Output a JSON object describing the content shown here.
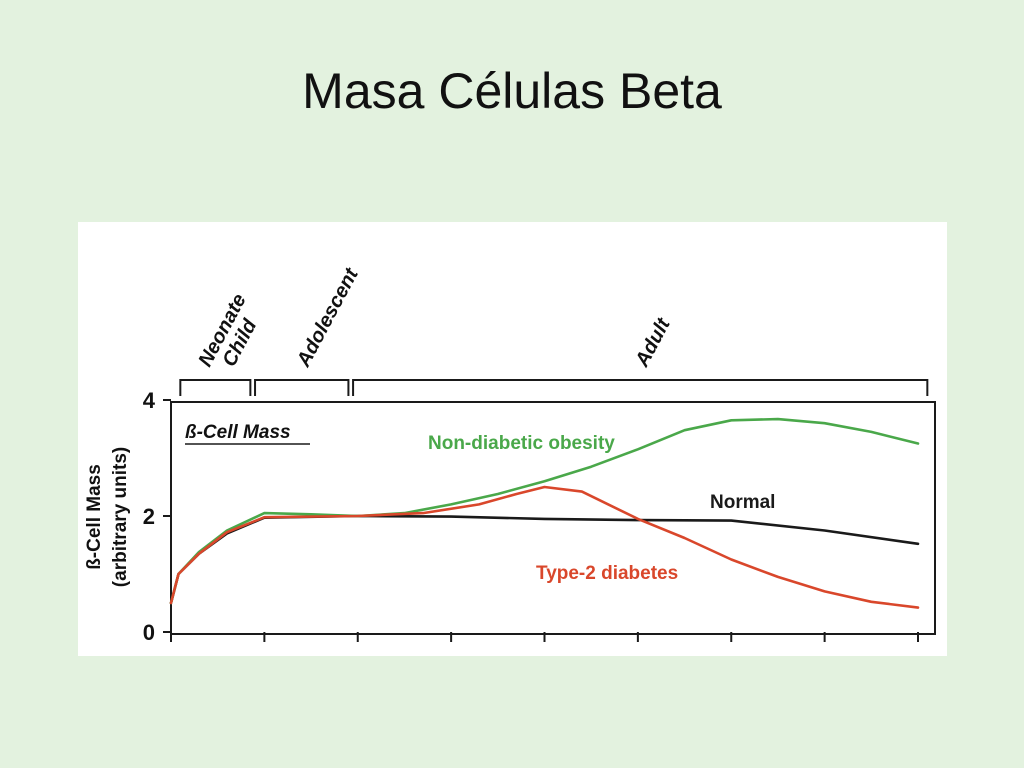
{
  "slide": {
    "title": "Masa Células Beta"
  },
  "chart_data": {
    "type": "line",
    "title": "ß-Cell Mass",
    "ylabel": [
      "ß-Cell Mass",
      "(arbitrary units)"
    ],
    "xlabel": "",
    "ylim": [
      0,
      4
    ],
    "xlim": [
      0,
      8
    ],
    "yticks": [
      0,
      2,
      4
    ],
    "xticks": [
      0,
      1,
      2,
      3,
      4,
      5,
      6,
      7,
      8
    ],
    "phases": [
      {
        "lines": [
          "Neonate",
          "Child"
        ],
        "range": [
          0.1,
          0.85
        ]
      },
      {
        "lines": [
          "Adolescent"
        ],
        "range": [
          0.9,
          1.9
        ]
      },
      {
        "lines": [
          "Adult"
        ],
        "range": [
          1.95,
          8.1
        ]
      }
    ],
    "series": [
      {
        "name": "Normal",
        "color": "#1a1a1a",
        "x": [
          0,
          0.08,
          0.3,
          0.6,
          1.0,
          2.0,
          3.0,
          4.0,
          5.0,
          6.0,
          7.0,
          8.0
        ],
        "values": [
          0.5,
          1.0,
          1.35,
          1.7,
          1.97,
          2.0,
          1.99,
          1.95,
          1.93,
          1.92,
          1.75,
          1.52
        ]
      },
      {
        "name": "Non-diabetic obesity",
        "color": "#4aa84a",
        "x": [
          0,
          0.08,
          0.3,
          0.6,
          1.0,
          1.5,
          2.0,
          2.5,
          3.0,
          3.5,
          4.0,
          4.5,
          5.0,
          5.5,
          6.0,
          6.5,
          7.0,
          7.5,
          8.0
        ],
        "values": [
          0.5,
          1.0,
          1.38,
          1.75,
          2.05,
          2.03,
          2.0,
          2.05,
          2.2,
          2.38,
          2.6,
          2.85,
          3.15,
          3.48,
          3.65,
          3.67,
          3.6,
          3.45,
          3.25
        ]
      },
      {
        "name": "Type-2 diabetes",
        "color": "#d9472b",
        "x": [
          0,
          0.08,
          0.3,
          0.6,
          1.0,
          2.0,
          2.7,
          3.3,
          3.7,
          4.0,
          4.4,
          5.0,
          5.5,
          6.0,
          6.5,
          7.0,
          7.5,
          8.0
        ],
        "values": [
          0.5,
          1.0,
          1.35,
          1.72,
          1.98,
          2.0,
          2.05,
          2.2,
          2.38,
          2.5,
          2.42,
          1.95,
          1.62,
          1.25,
          0.95,
          0.7,
          0.52,
          0.42
        ]
      }
    ]
  }
}
